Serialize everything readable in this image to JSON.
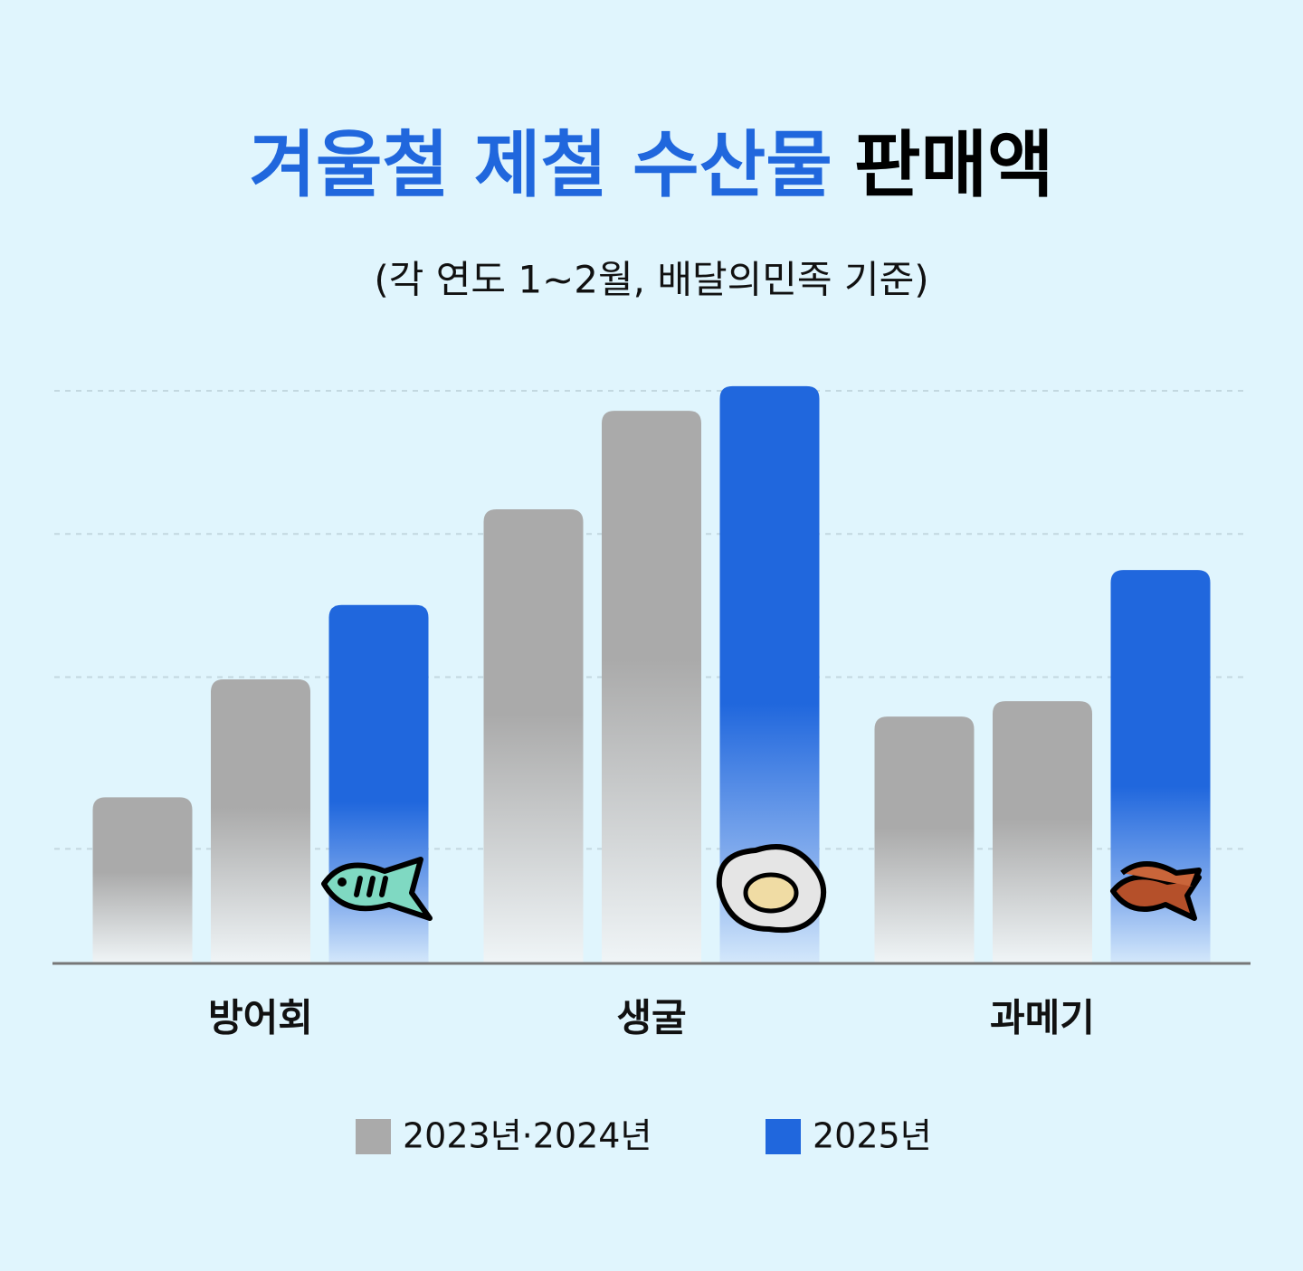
{
  "chart_data": {
    "type": "bar",
    "title": {
      "highlight": "겨울철 제철 수산물",
      "rest": "판매액"
    },
    "subtitle": "(각 연도 1~2월, 배달의민족 기준)",
    "categories": [
      "방어회",
      "생굴",
      "과메기"
    ],
    "series": [
      {
        "name": "2023년·2024년",
        "color": "#aaaaaa",
        "values": [
          [
            29,
            49.6
          ],
          [
            79.3,
            96.5
          ],
          [
            43.1,
            45.8
          ]
        ]
      },
      {
        "name": "2025년",
        "color": "#2067dd",
        "values": [
          62.6,
          100.8,
          68.7
        ]
      }
    ],
    "ylim": [
      0,
      100
    ],
    "gridlines": [
      20,
      50,
      75,
      100
    ],
    "grid": true
  }
}
